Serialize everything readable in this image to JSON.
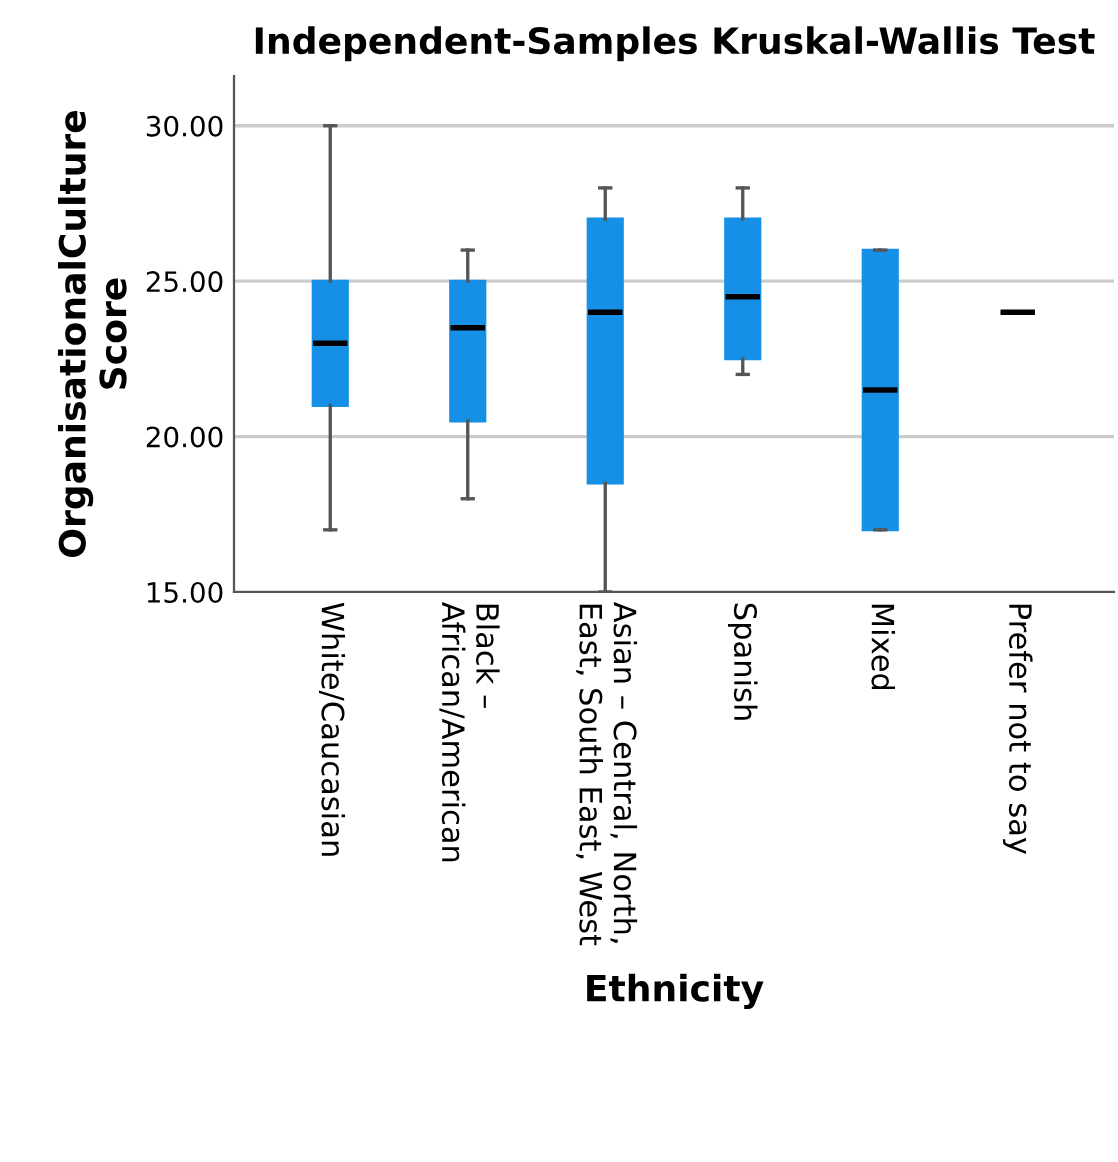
{
  "chart_data": {
    "type": "box",
    "title": "Independent-Samples Kruskal-Wallis Test",
    "xlabel": "Ethnicity",
    "ylabel": "OrganisationalCulture\nScore",
    "categories": [
      "White/Caucasian",
      "Black –\nAfrican/American",
      "Asian – Central, North,\nEast, South East, West",
      "Spanish",
      "Mixed",
      "Prefer not to say"
    ],
    "boxes": [
      {
        "low": 17,
        "q1": 21,
        "median": 23,
        "q3": 25,
        "high": 30
      },
      {
        "low": 18,
        "q1": 20.5,
        "median": 23.5,
        "q3": 25,
        "high": 26
      },
      {
        "low": 15,
        "q1": 18.5,
        "median": 24,
        "q3": 27,
        "high": 28
      },
      {
        "low": 22,
        "q1": 22.5,
        "median": 24.5,
        "q3": 27,
        "high": 28
      },
      {
        "low": 17,
        "q1": 17,
        "median": 21.5,
        "q3": 26,
        "high": 26
      },
      {
        "low": 24,
        "q1": 24,
        "median": 24,
        "q3": 24,
        "high": 24
      }
    ],
    "color": "#1590e6",
    "ylim": [
      15,
      31.6
    ],
    "yticks": [
      {
        "value": 15,
        "label": "15.00"
      },
      {
        "value": 20,
        "label": "20.00"
      },
      {
        "value": 25,
        "label": "25.00"
      },
      {
        "value": 30,
        "label": "30.00"
      }
    ],
    "grid": "y"
  }
}
